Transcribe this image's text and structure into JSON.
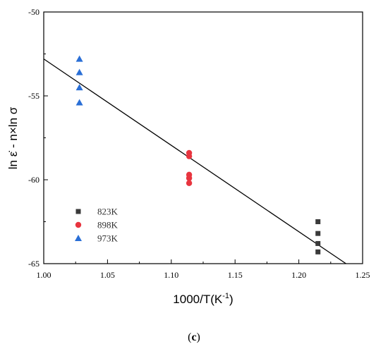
{
  "caption": {
    "open": "(",
    "letter": "c",
    "close": ")"
  },
  "chart_data": {
    "type": "scatter",
    "xlabel": "1000/T(K",
    "xlabel_sup": "-1",
    "xlabel_end": ")",
    "ylabel": "ln ε̇ - n×ln σ",
    "xlim": [
      1.0,
      1.25
    ],
    "ylim": [
      -65,
      -50
    ],
    "xticks": [
      "1.00",
      "1.05",
      "1.10",
      "1.15",
      "1.20",
      "1.25"
    ],
    "yticks": [
      "-65",
      "-60",
      "-55",
      "-50"
    ],
    "grid": false,
    "legend_position": "bottom-left",
    "series": [
      {
        "name": "823K",
        "marker": "square",
        "color": "#3a3a3a",
        "x": [
          1.215,
          1.215,
          1.215,
          1.215
        ],
        "y": [
          -62.5,
          -63.2,
          -63.8,
          -64.3
        ]
      },
      {
        "name": "898K",
        "marker": "circle",
        "color": "#e8353f",
        "x": [
          1.114,
          1.114,
          1.114,
          1.114,
          1.114
        ],
        "y": [
          -58.4,
          -58.6,
          -59.7,
          -59.9,
          -60.2
        ]
      },
      {
        "name": "973K",
        "marker": "triangle",
        "color": "#2a6fd6",
        "x": [
          1.028,
          1.028,
          1.028,
          1.028
        ],
        "y": [
          -52.8,
          -53.6,
          -54.5,
          -55.4
        ]
      }
    ],
    "fit_line": {
      "color": "#000000",
      "x": [
        1.0,
        1.237
      ],
      "y": [
        -52.8,
        -65.0
      ]
    }
  }
}
